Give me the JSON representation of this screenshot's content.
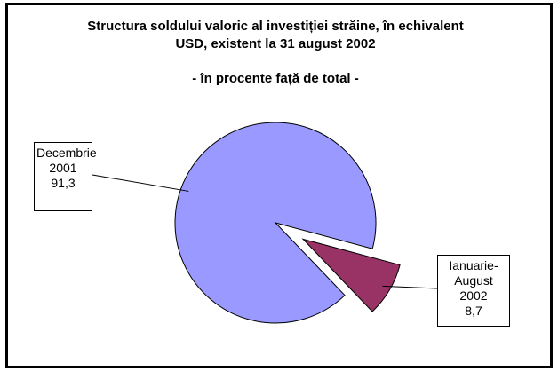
{
  "chart_data": {
    "type": "pie",
    "title": "Structura soldului valoric al investiției străine, în echivalent USD, existent la 31 august 2002",
    "subtitle": "- în procente față de total -",
    "categories": [
      "Decembrie 2001",
      "Ianuarie-August 2002"
    ],
    "values": [
      91.3,
      8.7
    ],
    "value_labels": [
      "91,3",
      "8,7"
    ],
    "colors": [
      "#9999ff",
      "#993366"
    ]
  }
}
